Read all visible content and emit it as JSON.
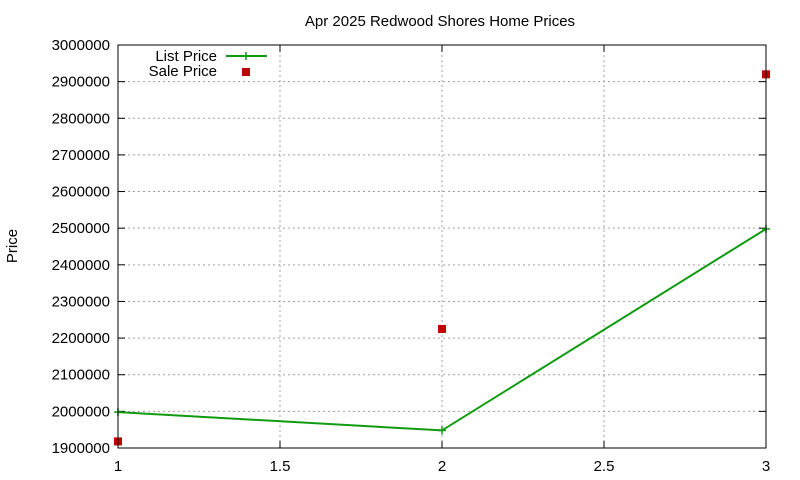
{
  "chart_data": {
    "type": "line",
    "title": "Apr 2025 Redwood Shores Home Prices",
    "xlabel": "",
    "ylabel": "Price",
    "xlim": [
      1,
      3
    ],
    "ylim": [
      1900000,
      3000000
    ],
    "x_ticks": [
      1,
      1.5,
      2,
      2.5,
      3
    ],
    "x_tick_labels": [
      "1",
      "1.5",
      "2",
      "2.5",
      "3"
    ],
    "y_ticks": [
      1900000,
      2000000,
      2100000,
      2200000,
      2300000,
      2400000,
      2500000,
      2600000,
      2700000,
      2800000,
      2900000,
      3000000
    ],
    "y_tick_labels": [
      "1900000",
      "2000000",
      "2100000",
      "2200000",
      "2300000",
      "2400000",
      "2500000",
      "2600000",
      "2700000",
      "2800000",
      "2900000",
      "3000000"
    ],
    "grid": true,
    "legend_position": "top-left",
    "series": [
      {
        "name": "List Price",
        "style": "linespoints",
        "marker": "plus",
        "color": "#109A10",
        "x": [
          1,
          2,
          3
        ],
        "y": [
          1998000,
          1948000,
          2498000
        ]
      },
      {
        "name": "Sale Price",
        "style": "points",
        "marker": "square",
        "color": "#C00000",
        "x": [
          1,
          2,
          3
        ],
        "y": [
          1918000,
          2225000,
          2920000
        ]
      }
    ]
  }
}
